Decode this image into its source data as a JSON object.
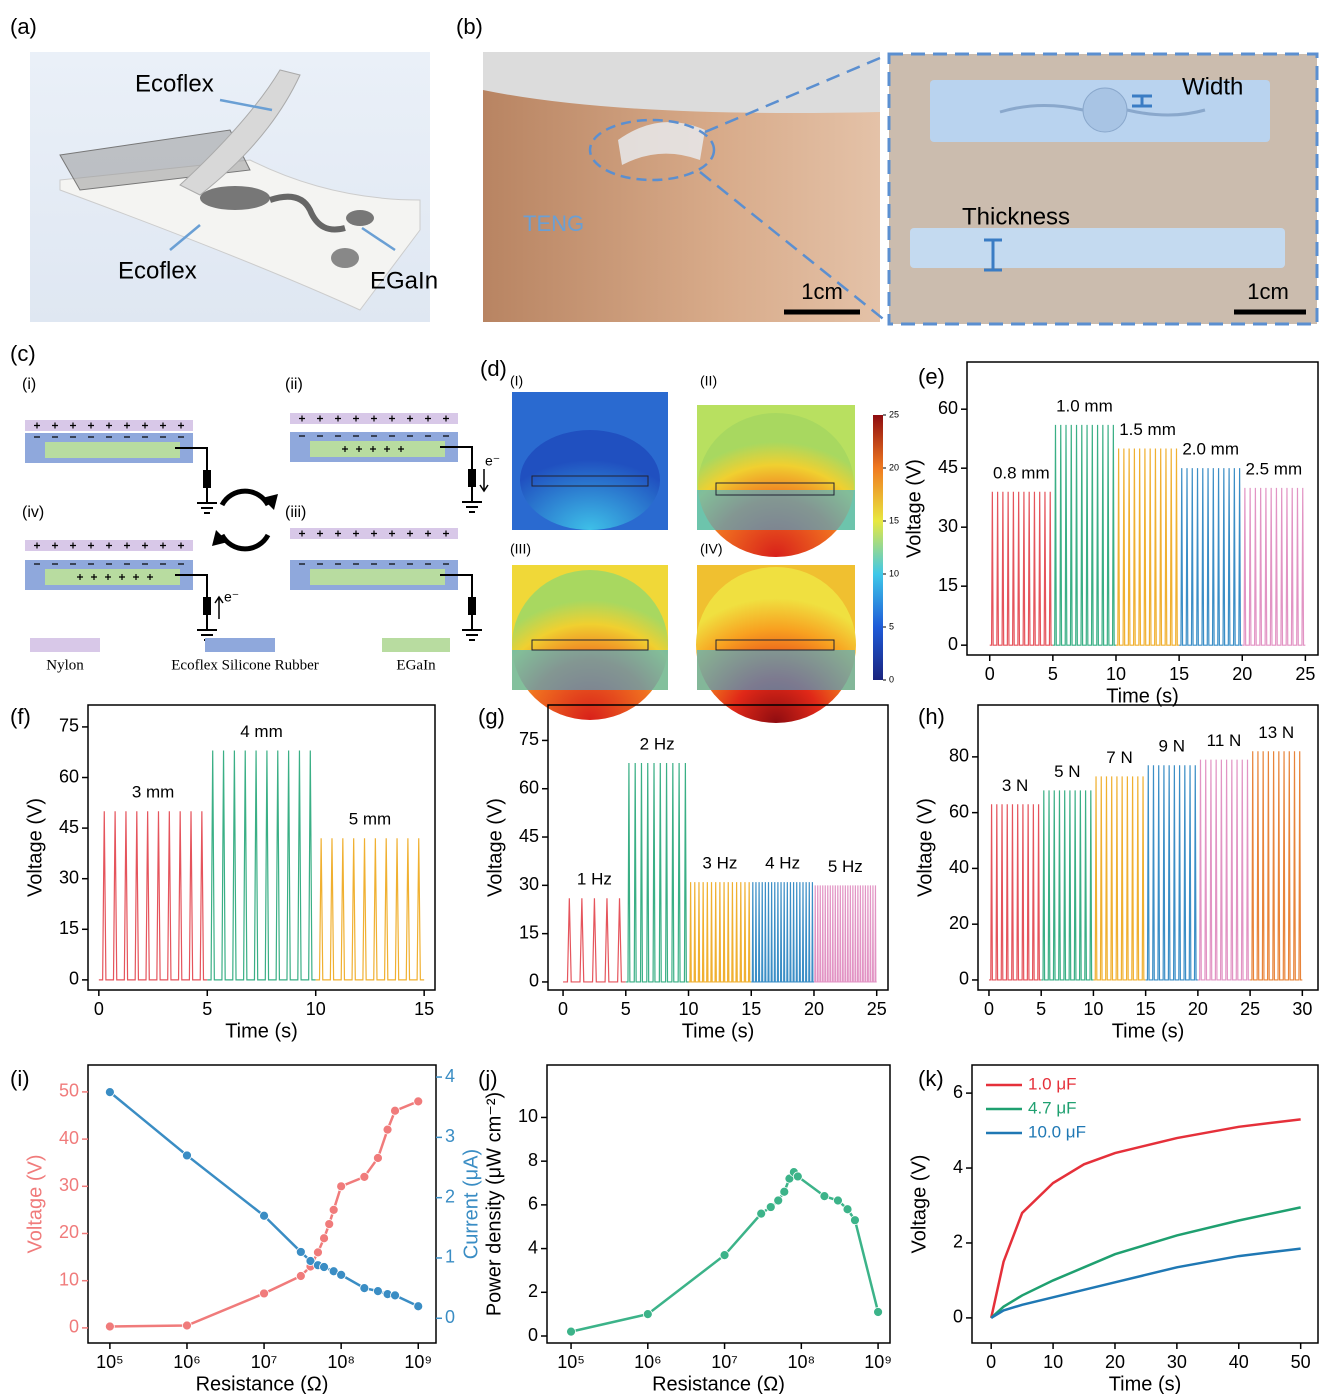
{
  "panel_a": {
    "label": "(a)",
    "texts": [
      "Ecoflex",
      "Ecoflex",
      "EGaIn"
    ]
  },
  "panel_b": {
    "label": "(b)",
    "texts": [
      "TENG",
      "1cm",
      "Width",
      "Thickness",
      "1cm"
    ]
  },
  "panel_c": {
    "label": "(c)",
    "stages": [
      "(i)",
      "(ii)",
      "(iv)",
      "(iii)"
    ],
    "electron": "e⁻",
    "legend": [
      "Nylon",
      "Ecoflex Silicone Rubber",
      "EGaIn"
    ]
  },
  "panel_d": {
    "label": "(d)",
    "stages": [
      "(I)",
      "(II)",
      "(III)",
      "(IV)"
    ],
    "colorbar": {
      "lim": [
        0,
        25
      ],
      "ticks": [
        0,
        5,
        10,
        15,
        20,
        25
      ]
    }
  },
  "chart_data": [
    {
      "type": "waveform",
      "label": "(e)",
      "xlabel": "Time (s)",
      "ylabel": "Voltage (V)",
      "xlim": [
        -1.8,
        26
      ],
      "xticks": [
        0,
        5,
        10,
        15,
        20,
        25
      ],
      "ylim": [
        -2.5,
        72
      ],
      "yticks": [
        0,
        15,
        30,
        45,
        60
      ],
      "series": [
        {
          "name": "0.8 mm",
          "color": "#e5545c",
          "xrange": [
            0,
            5
          ],
          "peak": 39,
          "count": 12
        },
        {
          "name": "1.0 mm",
          "color": "#3aaf85",
          "xrange": [
            5,
            10
          ],
          "peak": 56,
          "count": 12
        },
        {
          "name": "1.5 mm",
          "color": "#f0b030",
          "xrange": [
            10,
            15
          ],
          "peak": 50,
          "count": 12
        },
        {
          "name": "2.0 mm",
          "color": "#3b8ec6",
          "xrange": [
            15,
            20
          ],
          "peak": 45,
          "count": 12
        },
        {
          "name": "2.5 mm",
          "color": "#e294c4",
          "xrange": [
            20,
            25
          ],
          "peak": 40,
          "count": 12
        }
      ]
    },
    {
      "type": "waveform",
      "label": "(f)",
      "xlabel": "Time (s)",
      "ylabel": "Voltage (V)",
      "xlim": [
        -0.5,
        15.5
      ],
      "xticks": [
        0,
        5,
        10,
        15
      ],
      "ylim": [
        -3,
        81.5
      ],
      "yticks": [
        0,
        15,
        30,
        45,
        60,
        75
      ],
      "series": [
        {
          "name": "3 mm",
          "color": "#e5545c",
          "xrange": [
            0,
            5
          ],
          "peak": 50,
          "count": 10
        },
        {
          "name": "4 mm",
          "color": "#3aaf85",
          "xrange": [
            5,
            10
          ],
          "peak": 68,
          "count": 10
        },
        {
          "name": "5 mm",
          "color": "#f0b030",
          "xrange": [
            10,
            15
          ],
          "peak": 42,
          "count": 10
        }
      ]
    },
    {
      "type": "waveform",
      "label": "(g)",
      "xlabel": "Time (s)",
      "ylabel": "Voltage (V)",
      "xlim": [
        -1.2,
        25.9
      ],
      "xticks": [
        0,
        5,
        10,
        15,
        20,
        25
      ],
      "ylim": [
        -2.5,
        86
      ],
      "yticks": [
        0,
        15,
        30,
        45,
        60,
        75
      ],
      "series": [
        {
          "name": "1 Hz",
          "color": "#e5545c",
          "xrange": [
            0,
            5
          ],
          "peak": 26,
          "count": 5
        },
        {
          "name": "2 Hz",
          "color": "#3aaf85",
          "xrange": [
            5,
            10
          ],
          "peak": 68,
          "count": 10
        },
        {
          "name": "3 Hz",
          "color": "#f0b030",
          "xrange": [
            10,
            15
          ],
          "peak": 31,
          "count": 15
        },
        {
          "name": "4 Hz",
          "color": "#3b8ec6",
          "xrange": [
            15,
            20
          ],
          "peak": 31,
          "count": 20
        },
        {
          "name": "5 Hz",
          "color": "#e294c4",
          "xrange": [
            20,
            25
          ],
          "peak": 30,
          "count": 25
        }
      ]
    },
    {
      "type": "waveform",
      "label": "(h)",
      "xlabel": "Time (s)",
      "ylabel": "Voltage (V)",
      "xlim": [
        -1.05,
        31.5
      ],
      "xticks": [
        0,
        5,
        10,
        15,
        20,
        25,
        30
      ],
      "ylim": [
        -3.6,
        98.6
      ],
      "yticks": [
        0,
        20,
        40,
        60,
        80
      ],
      "series": [
        {
          "name": "3 N",
          "color": "#e5545c",
          "xrange": [
            0,
            5
          ],
          "peak": 63,
          "count": 10
        },
        {
          "name": "5 N",
          "color": "#3aaf85",
          "xrange": [
            5,
            10
          ],
          "peak": 68,
          "count": 10
        },
        {
          "name": "7 N",
          "color": "#f0b030",
          "xrange": [
            10,
            15
          ],
          "peak": 73,
          "count": 10
        },
        {
          "name": "9 N",
          "color": "#3b8ec6",
          "xrange": [
            15,
            20
          ],
          "peak": 77,
          "count": 10
        },
        {
          "name": "11 N",
          "color": "#e294c4",
          "xrange": [
            20,
            25
          ],
          "peak": 79,
          "count": 10
        },
        {
          "name": "13 N",
          "color": "#e8843a",
          "xrange": [
            25,
            30
          ],
          "peak": 82,
          "count": 10
        }
      ]
    },
    {
      "type": "line",
      "label": "(i)",
      "xscale": "log",
      "markers": true,
      "xlabel": "Resistance (Ω)",
      "ylabel": "Voltage (V)",
      "y2label": "Current (μA)",
      "xlim": [
        52000,
        1700000000
      ],
      "xticks": [
        {
          "value": 100000,
          "label": "10⁵"
        },
        {
          "value": 1000000,
          "label": "10⁶"
        },
        {
          "value": 10000000,
          "label": "10⁷"
        },
        {
          "value": 100000000,
          "label": "10⁸"
        },
        {
          "value": 1000000000,
          "label": "10⁹"
        }
      ],
      "ylim": [
        -3.2,
        55.7
      ],
      "yticks": [
        0,
        10,
        20,
        30,
        40,
        50
      ],
      "y2lim": [
        -0.41,
        4.2
      ],
      "y2ticks": [
        0,
        1,
        2,
        3,
        4
      ],
      "series": [
        {
          "color": "#f07b7b",
          "x": [
            100000,
            1000000,
            10000000,
            30000000,
            40000000,
            50000000,
            60000000,
            70000000,
            80000000,
            100000000,
            200000000,
            300000000,
            400000000,
            500000000,
            1000000000
          ],
          "values": [
            0.3,
            0.5,
            7.3,
            11,
            13,
            16,
            19,
            22,
            25,
            30,
            32,
            36,
            42,
            46,
            48
          ]
        },
        {
          "color": "#3a8dc4",
          "axis": "y2",
          "x": [
            100000,
            1000000,
            10000000,
            30000000,
            40000000,
            50000000,
            60000000,
            80000000,
            100000000,
            200000000,
            300000000,
            400000000,
            500000000,
            1000000000
          ],
          "values": [
            3.75,
            2.7,
            1.7,
            1.1,
            0.95,
            0.88,
            0.85,
            0.78,
            0.72,
            0.5,
            0.45,
            0.4,
            0.38,
            0.2
          ]
        }
      ]
    },
    {
      "type": "line",
      "label": "(j)",
      "xscale": "log",
      "markers": true,
      "xlabel": "Resistance (Ω)",
      "ylabel": "Power density (μW cm⁻²)",
      "xlim": [
        48600,
        1430000000
      ],
      "xticks": [
        {
          "value": 100000,
          "label": "10⁵"
        },
        {
          "value": 1000000,
          "label": "10⁶"
        },
        {
          "value": 10000000,
          "label": "10⁷"
        },
        {
          "value": 100000000,
          "label": "10⁸"
        },
        {
          "value": 1000000000,
          "label": "10⁹"
        }
      ],
      "ylim": [
        -0.32,
        12.4
      ],
      "yticks": [
        0,
        2,
        4,
        6,
        8,
        10
      ],
      "series": [
        {
          "color": "#3cb389",
          "x": [
            100000,
            1000000,
            10000000,
            30000000,
            40000000,
            50000000,
            60000000,
            70000000,
            80000000,
            90000000,
            200000000,
            300000000,
            400000000,
            500000000,
            1000000000
          ],
          "values": [
            0.2,
            1,
            3.7,
            5.6,
            5.9,
            6.2,
            6.6,
            7.2,
            7.5,
            7.3,
            6.4,
            6.2,
            5.8,
            5.3,
            1.1
          ]
        }
      ]
    },
    {
      "type": "line",
      "label": "(k)",
      "xlabel": "Time (s)",
      "ylabel": "Voltage (V)",
      "legend": "upper left",
      "xlim": [
        -3.1,
        52.8
      ],
      "xticks": [
        0,
        10,
        20,
        30,
        40,
        50
      ],
      "ylim": [
        -0.67,
        6.75
      ],
      "yticks": [
        0,
        2,
        4,
        6
      ],
      "series": [
        {
          "name": "1.0 μF",
          "color": "#e5303a",
          "x": [
            0,
            2,
            5,
            10,
            15,
            20,
            30,
            40,
            50
          ],
          "values": [
            0,
            1.5,
            2.8,
            3.6,
            4.1,
            4.4,
            4.8,
            5.1,
            5.3
          ]
        },
        {
          "name": "4.7 μF",
          "color": "#1fa070",
          "x": [
            0,
            2,
            5,
            10,
            15,
            20,
            30,
            40,
            50
          ],
          "values": [
            0,
            0.3,
            0.6,
            1.0,
            1.35,
            1.7,
            2.2,
            2.6,
            2.95
          ]
        },
        {
          "name": "10.0 μF",
          "color": "#1f78b4",
          "x": [
            0,
            2,
            5,
            10,
            15,
            20,
            30,
            40,
            50
          ],
          "values": [
            0,
            0.2,
            0.35,
            0.55,
            0.75,
            0.95,
            1.35,
            1.65,
            1.85
          ]
        }
      ]
    }
  ]
}
